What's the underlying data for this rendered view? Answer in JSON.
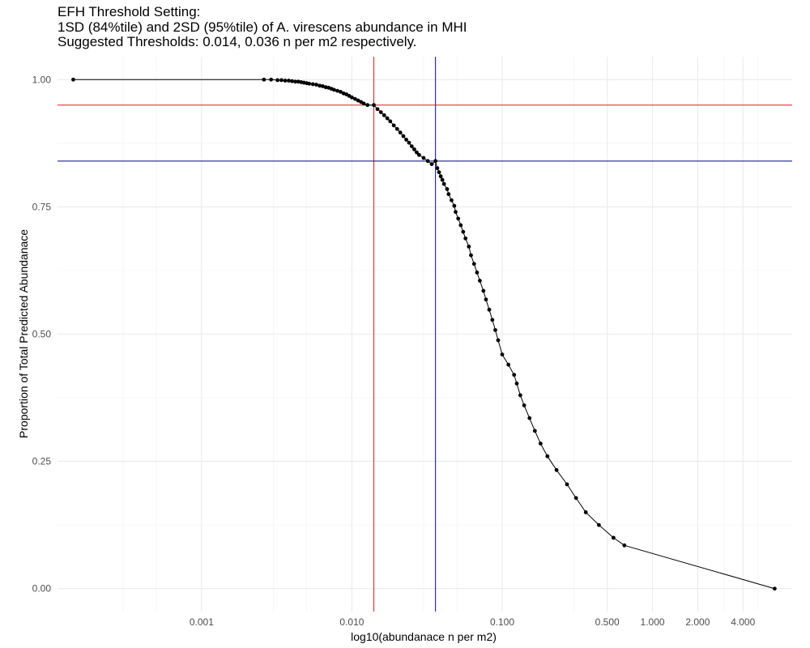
{
  "chart_data": {
    "type": "line",
    "title_lines": [
      "EFH Threshold Setting:",
      "1SD (84%tile) and 2SD (95%tile) of A. virescens abundance in MHI",
      "Suggested Thresholds: 0.014, 0.036 n per m2 respectively."
    ],
    "xlabel": "log10(abundanace n per m2)",
    "ylabel": "Proportion of Total Predicted Abundanace",
    "x_scale": "log10",
    "xlim": [
      0.00011,
      8.5
    ],
    "ylim": [
      -0.045,
      1.045
    ],
    "x_ticks": [
      {
        "value": 0.001,
        "label": "0.001"
      },
      {
        "value": 0.01,
        "label": "0.010"
      },
      {
        "value": 0.1,
        "label": "0.100"
      },
      {
        "value": 0.5,
        "label": "0.500"
      },
      {
        "value": 1,
        "label": "1.000"
      },
      {
        "value": 2,
        "label": "2.000"
      },
      {
        "value": 4,
        "label": "4.000"
      }
    ],
    "x_minor_grid": [
      0.0003,
      0.0005,
      0.003,
      0.005,
      0.03,
      0.05,
      0.3,
      3,
      5
    ],
    "y_ticks": [
      {
        "value": 0,
        "label": "0.00"
      },
      {
        "value": 0.25,
        "label": "0.25"
      },
      {
        "value": 0.5,
        "label": "0.50"
      },
      {
        "value": 0.75,
        "label": "0.75"
      },
      {
        "value": 1,
        "label": "1.00"
      }
    ],
    "y_minor_grid": [
      0.125,
      0.375,
      0.625,
      0.875
    ],
    "grid": true,
    "series": [
      {
        "color": "#000000",
        "points": [
          [
            0.00014,
            1.0
          ],
          [
            0.0026,
            1.0
          ],
          [
            0.0029,
            1.0
          ],
          [
            0.0032,
            0.999
          ],
          [
            0.0034,
            0.999
          ],
          [
            0.0036,
            0.998
          ],
          [
            0.0038,
            0.998
          ],
          [
            0.004,
            0.997
          ],
          [
            0.0042,
            0.996
          ],
          [
            0.0044,
            0.996
          ],
          [
            0.0046,
            0.995
          ],
          [
            0.0048,
            0.994
          ],
          [
            0.005,
            0.993
          ],
          [
            0.0052,
            0.992
          ],
          [
            0.0055,
            0.991
          ],
          [
            0.0058,
            0.99
          ],
          [
            0.0061,
            0.988
          ],
          [
            0.0064,
            0.987
          ],
          [
            0.0067,
            0.985
          ],
          [
            0.007,
            0.984
          ],
          [
            0.0073,
            0.982
          ],
          [
            0.0076,
            0.98
          ],
          [
            0.008,
            0.978
          ],
          [
            0.0084,
            0.976
          ],
          [
            0.0088,
            0.973
          ],
          [
            0.0092,
            0.971
          ],
          [
            0.0096,
            0.968
          ],
          [
            0.01,
            0.965
          ],
          [
            0.0105,
            0.962
          ],
          [
            0.011,
            0.959
          ],
          [
            0.0115,
            0.956
          ],
          [
            0.012,
            0.953
          ],
          [
            0.0127,
            0.95
          ],
          [
            0.014,
            0.95
          ],
          [
            0.0148,
            0.942
          ],
          [
            0.0156,
            0.936
          ],
          [
            0.0164,
            0.93
          ],
          [
            0.0172,
            0.924
          ],
          [
            0.018,
            0.918
          ],
          [
            0.019,
            0.91
          ],
          [
            0.02,
            0.903
          ],
          [
            0.021,
            0.896
          ],
          [
            0.022,
            0.889
          ],
          [
            0.023,
            0.882
          ],
          [
            0.024,
            0.876
          ],
          [
            0.025,
            0.869
          ],
          [
            0.026,
            0.863
          ],
          [
            0.027,
            0.857
          ],
          [
            0.028,
            0.852
          ],
          [
            0.03,
            0.846
          ],
          [
            0.032,
            0.84
          ],
          [
            0.034,
            0.834
          ],
          [
            0.036,
            0.84
          ],
          [
            0.037,
            0.826
          ],
          [
            0.038,
            0.818
          ],
          [
            0.039,
            0.81
          ],
          [
            0.04,
            0.803
          ],
          [
            0.041,
            0.795
          ],
          [
            0.043,
            0.785
          ],
          [
            0.044,
            0.775
          ],
          [
            0.046,
            0.763
          ],
          [
            0.048,
            0.752
          ],
          [
            0.049,
            0.74
          ],
          [
            0.051,
            0.727
          ],
          [
            0.053,
            0.714
          ],
          [
            0.055,
            0.701
          ],
          [
            0.057,
            0.688
          ],
          [
            0.06,
            0.672
          ],
          [
            0.062,
            0.655
          ],
          [
            0.065,
            0.638
          ],
          [
            0.068,
            0.621
          ],
          [
            0.071,
            0.605
          ],
          [
            0.075,
            0.585
          ],
          [
            0.078,
            0.568
          ],
          [
            0.082,
            0.548
          ],
          [
            0.086,
            0.528
          ],
          [
            0.09,
            0.508
          ],
          [
            0.094,
            0.488
          ],
          [
            0.1,
            0.46
          ],
          [
            0.11,
            0.44
          ],
          [
            0.12,
            0.42
          ],
          [
            0.125,
            0.403
          ],
          [
            0.132,
            0.38
          ],
          [
            0.14,
            0.36
          ],
          [
            0.152,
            0.335
          ],
          [
            0.165,
            0.31
          ],
          [
            0.18,
            0.285
          ],
          [
            0.2,
            0.26
          ],
          [
            0.23,
            0.233
          ],
          [
            0.27,
            0.205
          ],
          [
            0.31,
            0.178
          ],
          [
            0.36,
            0.15
          ],
          [
            0.44,
            0.125
          ],
          [
            0.55,
            0.1
          ],
          [
            0.65,
            0.085
          ],
          [
            6.5,
            0.0
          ]
        ]
      }
    ],
    "reference_lines": [
      {
        "orientation": "vertical",
        "value": 0.014,
        "color": "#e31a1c"
      },
      {
        "orientation": "vertical",
        "value": 0.036,
        "color": "#0000cd"
      },
      {
        "orientation": "horizontal",
        "value": 0.95,
        "color": "#e31a1c"
      },
      {
        "orientation": "horizontal",
        "value": 0.84,
        "color": "#00008b"
      }
    ]
  }
}
